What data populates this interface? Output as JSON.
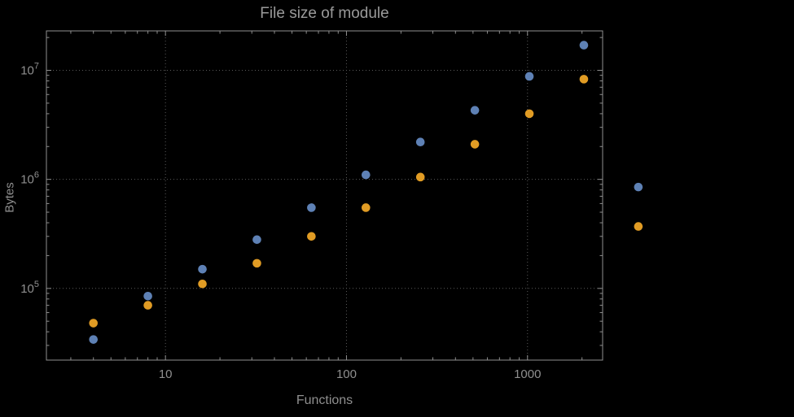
{
  "chart_data": {
    "type": "scatter",
    "title": "File size of module",
    "xlabel": "Functions",
    "ylabel": "Bytes",
    "x_scale": "log",
    "y_scale": "log",
    "xlim": [
      2.2,
      2600
    ],
    "ylim": [
      22000,
      23000000
    ],
    "grid": "dotted-major-both-axes",
    "legend": "none",
    "frame": true,
    "x_ticks": [
      {
        "value": 10,
        "label": "10"
      },
      {
        "value": 100,
        "label": "100"
      },
      {
        "value": 1000,
        "label": "1000"
      }
    ],
    "y_ticks": [
      {
        "value": 100000,
        "base": "10",
        "exp": "5"
      },
      {
        "value": 1000000,
        "base": "10",
        "exp": "6"
      },
      {
        "value": 10000000,
        "base": "10",
        "exp": "7"
      }
    ],
    "x": [
      4,
      8,
      16,
      32,
      64,
      128,
      256,
      512,
      1024,
      2048,
      4096
    ],
    "series": [
      {
        "name": "series-1-blue",
        "color": "#5e81b5",
        "values": [
          34000,
          85000,
          150000,
          280000,
          550000,
          1100000,
          2200000,
          4300000,
          8800000,
          17000000,
          850000
        ]
      },
      {
        "name": "series-2-orange",
        "color": "#e19c24",
        "values": [
          48000,
          70000,
          110000,
          170000,
          300000,
          550000,
          1050000,
          2100000,
          4000000,
          8300000,
          370000
        ]
      }
    ],
    "colors": {
      "background": "#000000",
      "frame": "#8f8f8f",
      "grid": "#5a5a5a",
      "tick_text": "#8f8f8f",
      "title_text": "#9a9a9a"
    }
  }
}
